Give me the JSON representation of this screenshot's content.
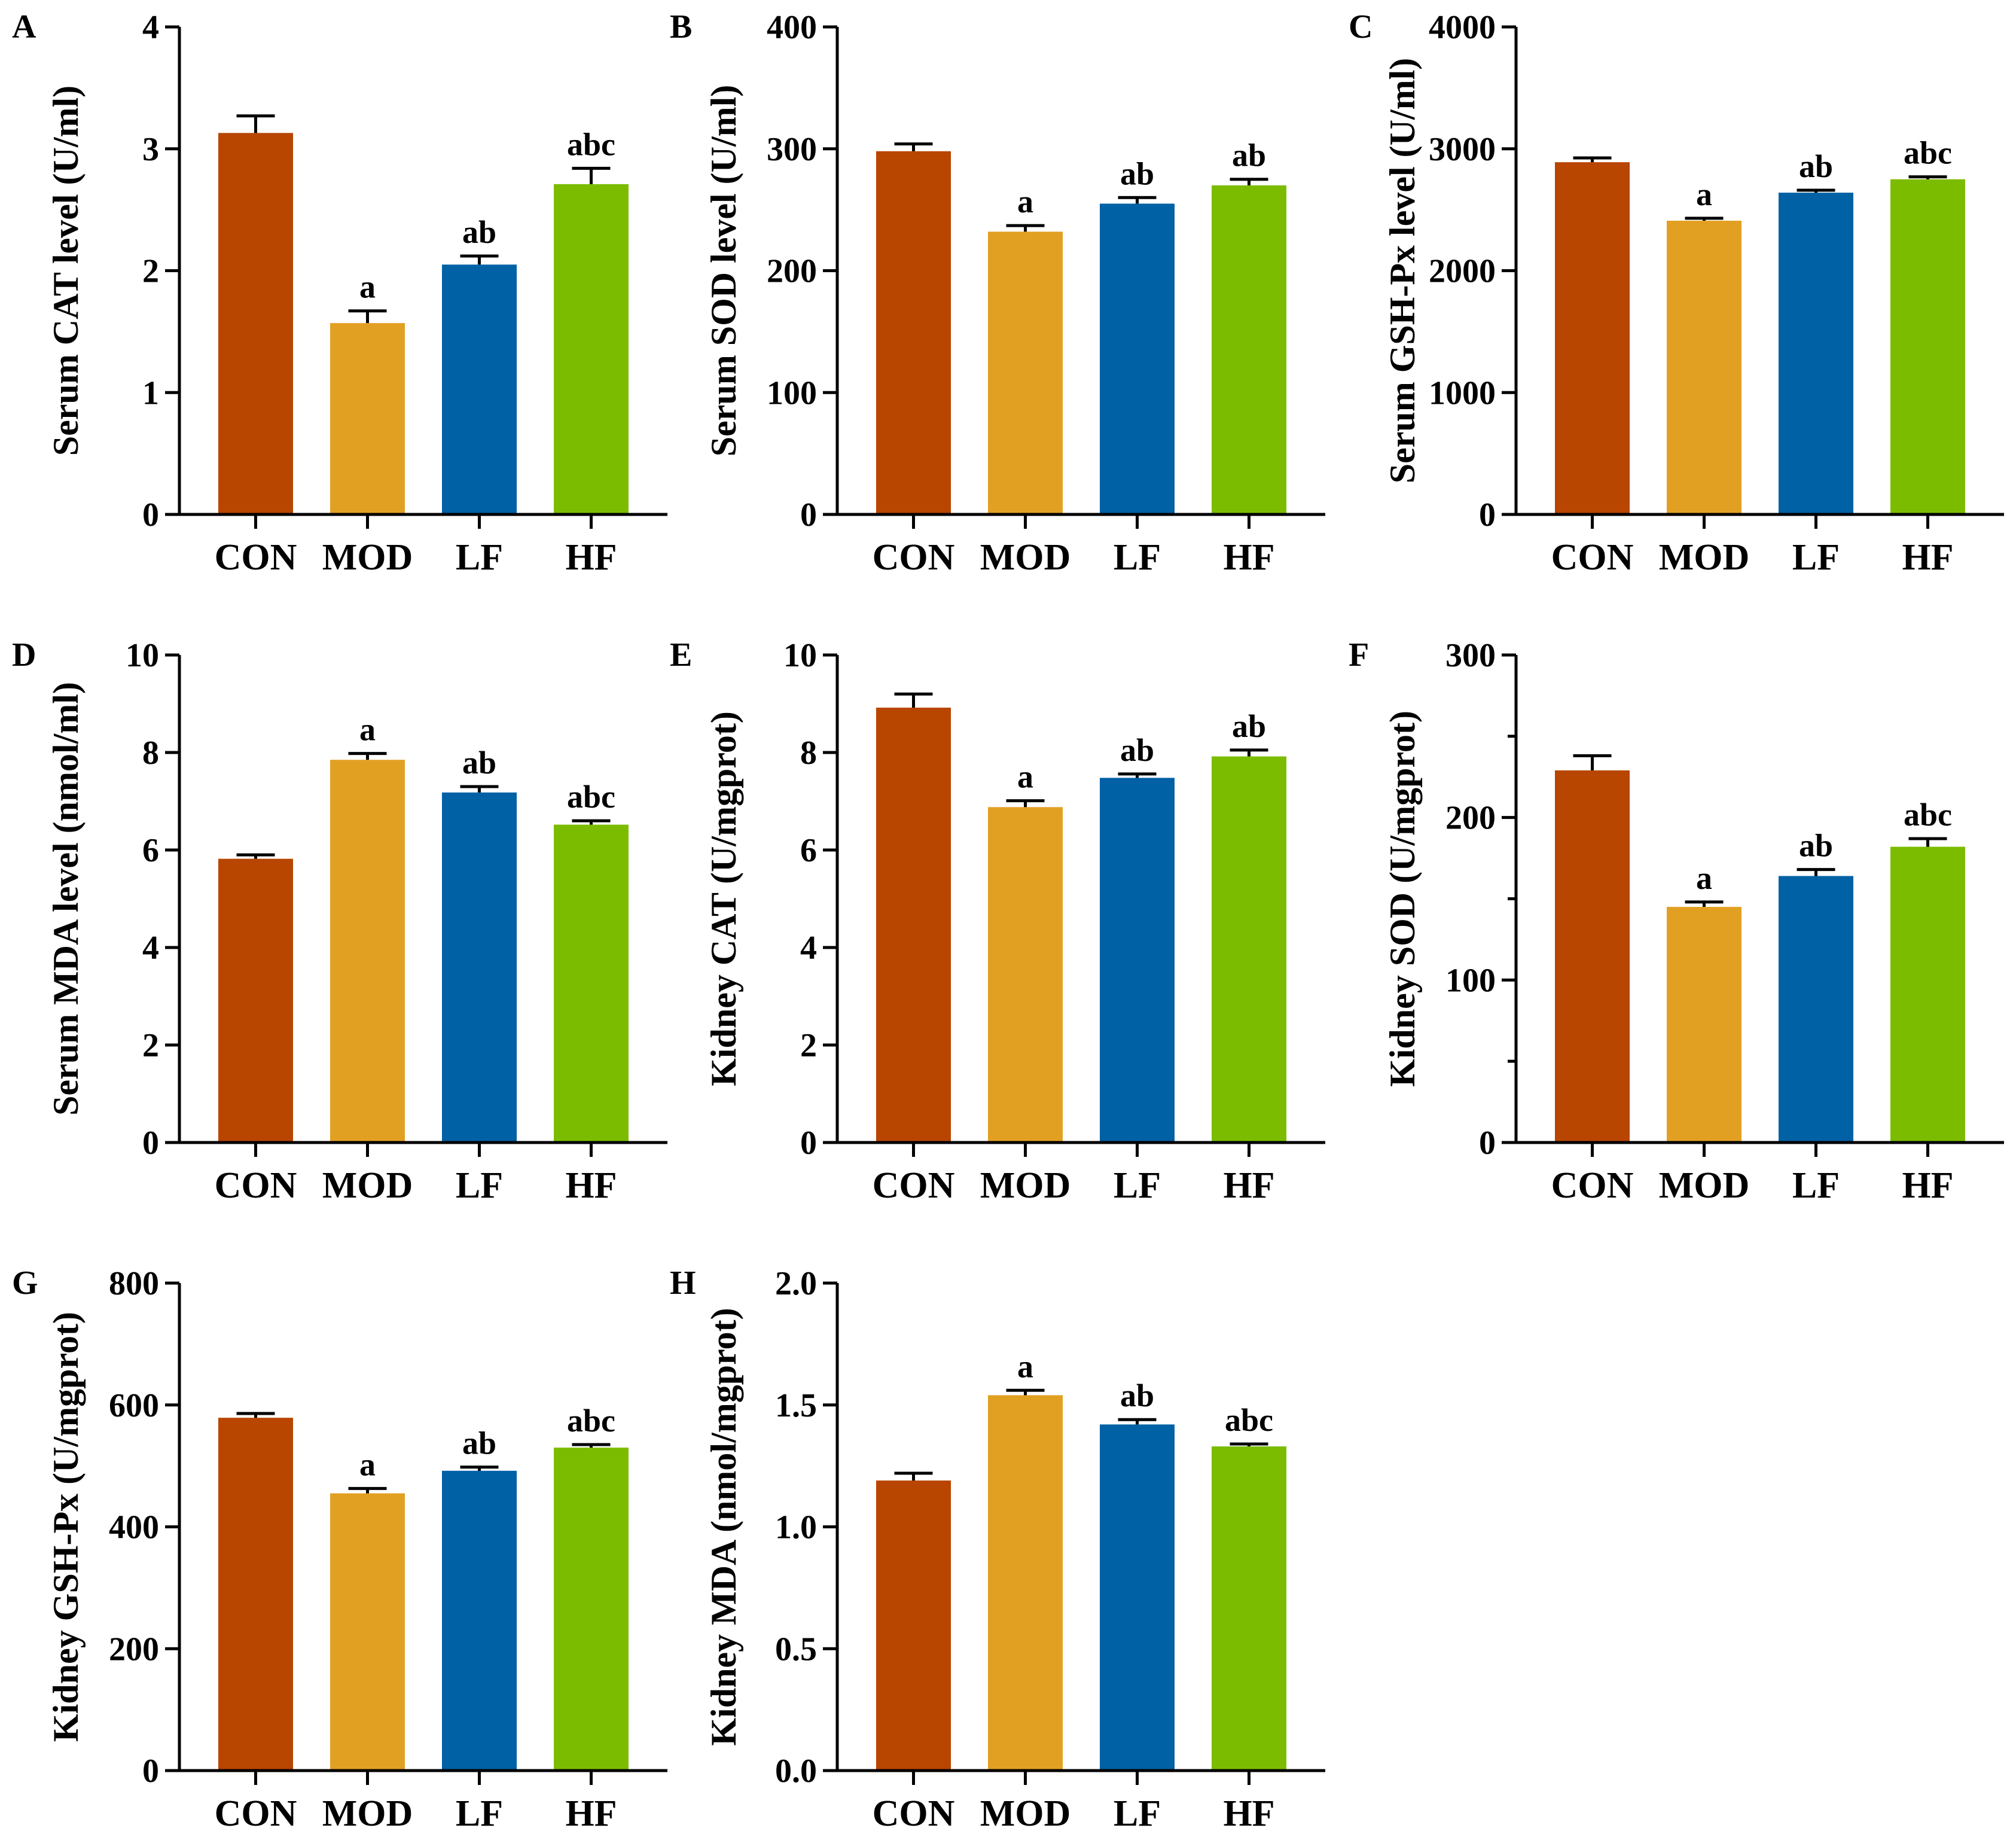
{
  "figure": {
    "colors": [
      "#B84500",
      "#E2A023",
      "#0061A5",
      "#7CBC00"
    ]
  },
  "chart_data": [
    {
      "panel": "A",
      "type": "bar",
      "categories": [
        "CON",
        "MOD",
        "LF",
        "HF"
      ],
      "values": [
        3.13,
        1.57,
        2.05,
        2.71
      ],
      "errors": [
        0.14,
        0.1,
        0.07,
        0.13
      ],
      "significance": [
        "",
        "a",
        "ab",
        "abc"
      ],
      "ylabel": "Serum CAT level (U/ml)",
      "ylim": [
        0,
        4
      ],
      "yticks": [
        0,
        1,
        2,
        3,
        4
      ],
      "ytick_labels": [
        "0",
        "1",
        "2",
        "3",
        "4"
      ],
      "minor_ticks": false
    },
    {
      "panel": "B",
      "type": "bar",
      "categories": [
        "CON",
        "MOD",
        "LF",
        "HF"
      ],
      "values": [
        298,
        232,
        255,
        270
      ],
      "errors": [
        6,
        5,
        5,
        5
      ],
      "significance": [
        "",
        "a",
        "ab",
        "ab"
      ],
      "ylabel": "Serum SOD level (U/ml)",
      "ylim": [
        0,
        400
      ],
      "yticks": [
        0,
        100,
        200,
        300,
        400
      ],
      "ytick_labels": [
        "0",
        "100",
        "200",
        "300",
        "400"
      ],
      "minor_ticks": false
    },
    {
      "panel": "C",
      "type": "bar",
      "categories": [
        "CON",
        "MOD",
        "LF",
        "HF"
      ],
      "values": [
        2890,
        2410,
        2640,
        2750
      ],
      "errors": [
        35,
        20,
        20,
        20
      ],
      "significance": [
        "",
        "a",
        "ab",
        "abc"
      ],
      "ylabel": "Serum GSH-Px level (U/ml)",
      "ylim": [
        0,
        4000
      ],
      "yticks": [
        0,
        1000,
        2000,
        3000,
        4000
      ],
      "ytick_labels": [
        "0",
        "1000",
        "2000",
        "3000",
        "4000"
      ],
      "minor_ticks": false
    },
    {
      "panel": "D",
      "type": "bar",
      "categories": [
        "CON",
        "MOD",
        "LF",
        "HF"
      ],
      "values": [
        5.82,
        7.85,
        7.18,
        6.52
      ],
      "errors": [
        0.08,
        0.13,
        0.12,
        0.08
      ],
      "significance": [
        "",
        "a",
        "ab",
        "abc"
      ],
      "ylabel": "Serum MDA level (nmol/ml)",
      "ylim": [
        0,
        10
      ],
      "yticks": [
        0,
        2,
        4,
        6,
        8,
        10
      ],
      "ytick_labels": [
        "0",
        "2",
        "4",
        "6",
        "8",
        "10"
      ],
      "minor_ticks": false
    },
    {
      "panel": "E",
      "type": "bar",
      "categories": [
        "CON",
        "MOD",
        "LF",
        "HF"
      ],
      "values": [
        8.92,
        6.88,
        7.48,
        7.92
      ],
      "errors": [
        0.28,
        0.13,
        0.08,
        0.13
      ],
      "significance": [
        "",
        "a",
        "ab",
        "ab"
      ],
      "ylabel": "Kidney CAT (U/mgprot)",
      "ylim": [
        0,
        10
      ],
      "yticks": [
        0,
        2,
        4,
        6,
        8,
        10
      ],
      "ytick_labels": [
        "0",
        "2",
        "4",
        "6",
        "8",
        "10"
      ],
      "minor_ticks": false
    },
    {
      "panel": "F",
      "type": "bar",
      "categories": [
        "CON",
        "MOD",
        "LF",
        "HF"
      ],
      "values": [
        229,
        145,
        164,
        182
      ],
      "errors": [
        9,
        3,
        4,
        5
      ],
      "significance": [
        "",
        "a",
        "ab",
        "abc"
      ],
      "ylabel": "Kidney SOD (U/mgprot)",
      "ylim": [
        0,
        300
      ],
      "yticks": [
        0,
        100,
        200,
        300
      ],
      "ytick_labels": [
        "0",
        "100",
        "200",
        "300"
      ],
      "minor_ticks": true
    },
    {
      "panel": "G",
      "type": "bar",
      "categories": [
        "CON",
        "MOD",
        "LF",
        "HF"
      ],
      "values": [
        579,
        455,
        492,
        530
      ],
      "errors": [
        7,
        8,
        6,
        5
      ],
      "significance": [
        "",
        "a",
        "ab",
        "abc"
      ],
      "ylabel": "Kidney GSH-Px (U/mgprot)",
      "ylim": [
        0,
        800
      ],
      "yticks": [
        0,
        200,
        400,
        600,
        800
      ],
      "ytick_labels": [
        "0",
        "200",
        "400",
        "600",
        "800"
      ],
      "minor_ticks": false
    },
    {
      "panel": "H",
      "type": "bar",
      "categories": [
        "CON",
        "MOD",
        "LF",
        "HF"
      ],
      "values": [
        1.19,
        1.54,
        1.42,
        1.33
      ],
      "errors": [
        0.03,
        0.02,
        0.02,
        0.01
      ],
      "significance": [
        "",
        "a",
        "ab",
        "abc"
      ],
      "ylabel": "Kidney MDA (nmol/mgprot)",
      "ylim": [
        0,
        2
      ],
      "yticks": [
        0,
        0.5,
        1,
        1.5,
        2
      ],
      "ytick_labels": [
        "0.0",
        "0.5",
        "1.0",
        "1.5",
        "2.0"
      ],
      "minor_ticks": false
    }
  ]
}
